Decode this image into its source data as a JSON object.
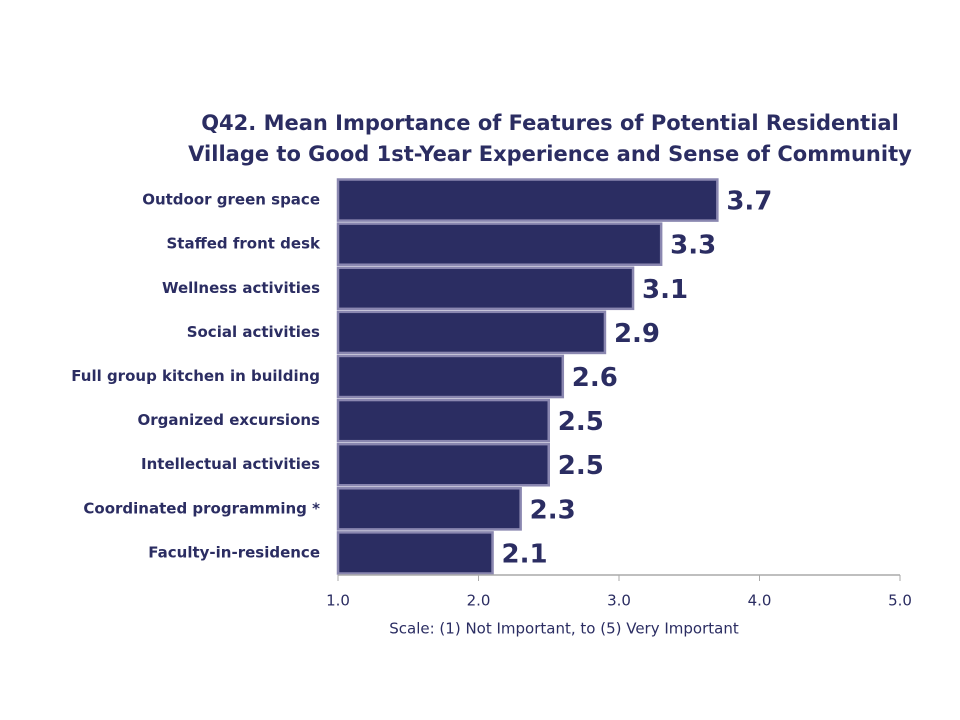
{
  "chart_data": {
    "type": "bar",
    "orientation": "horizontal",
    "title": [
      "Q42. Mean Importance of Features of Potential Residential",
      "Village to Good 1st-Year Experience and Sense of Community"
    ],
    "xlabel": "Scale: (1) Not Important, to (5) Very Important",
    "categories": [
      "Outdoor green space",
      "Staffed front desk",
      "Wellness activities",
      "Social activities",
      "Full group kitchen in building",
      "Organized excursions",
      "Intellectual activities",
      "Coordinated programming *",
      "Faculty-in-residence"
    ],
    "values": [
      3.7,
      3.3,
      3.1,
      2.9,
      2.6,
      2.5,
      2.5,
      2.3,
      2.1
    ],
    "color": "#2b2d62",
    "xlim": [
      1,
      5
    ],
    "xticks": [
      {
        "value": 1,
        "label": "1.0"
      },
      {
        "value": 2,
        "label": "2.0"
      },
      {
        "value": 3,
        "label": "3.0"
      },
      {
        "value": 4,
        "label": "4.0"
      },
      {
        "value": 5,
        "label": "5.0"
      }
    ]
  }
}
